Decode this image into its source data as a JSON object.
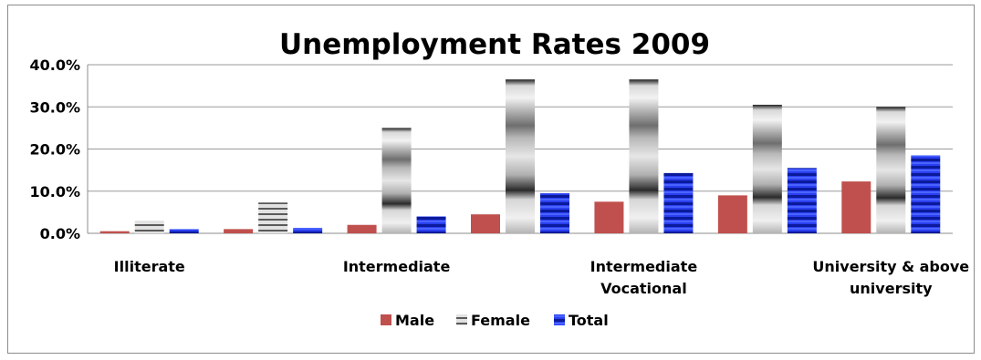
{
  "chart_data": {
    "type": "bar",
    "title": "Unemployment  Rates 2009",
    "ylim": [
      0,
      40
    ],
    "yticks": [
      0,
      10,
      20,
      30,
      40
    ],
    "yticklabels": [
      "0.0%",
      "10.0%",
      "20.0%",
      "30.0%",
      "40.0%"
    ],
    "grid": true,
    "legend_position": "bottom",
    "categories": [
      "Illiterate",
      "",
      "Intermediate",
      "",
      "Intermediate Vocational",
      "",
      "University  & above university"
    ],
    "category_label_lines": [
      [
        "Illiterate"
      ],
      [],
      [
        "Intermediate"
      ],
      [],
      [
        "Intermediate",
        "Vocational"
      ],
      [],
      [
        "University  & above",
        "university"
      ]
    ],
    "series": [
      {
        "name": "Male",
        "values": [
          0.5,
          1.0,
          2.0,
          4.5,
          7.5,
          9.0,
          12.3
        ],
        "color": "#c0504d"
      },
      {
        "name": "Female",
        "values": [
          3.0,
          7.3,
          25.0,
          36.5,
          36.5,
          30.5,
          30.0
        ],
        "color": "#a6a6a6"
      },
      {
        "name": "Total",
        "values": [
          1.0,
          1.3,
          4.0,
          9.5,
          14.3,
          15.5,
          18.5
        ],
        "color": "#0d27c8"
      }
    ]
  }
}
